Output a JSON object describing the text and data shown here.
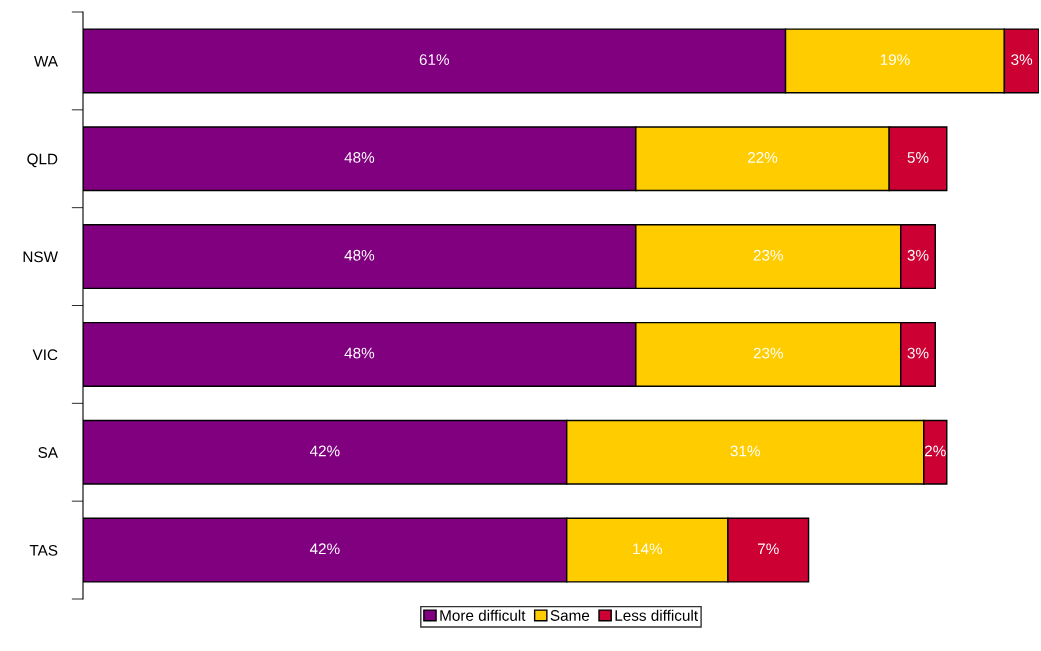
{
  "chart_data": {
    "type": "bar",
    "orientation": "horizontal",
    "stacked": true,
    "legend": "bottom",
    "grid": false,
    "categories": [
      "WA",
      "QLD",
      "NSW",
      "VIC",
      "SA",
      "TAS"
    ],
    "series": [
      {
        "name": "More difficult",
        "color": "#800080",
        "values": [
          61,
          48,
          48,
          48,
          42,
          42
        ],
        "value_labels": [
          "61%",
          "48%",
          "48%",
          "48%",
          "42%",
          "42%"
        ]
      },
      {
        "name": "Same",
        "color": "#ffcc00",
        "values": [
          19,
          22,
          23,
          23,
          31,
          14
        ],
        "value_labels": [
          "19%",
          "22%",
          "23%",
          "23%",
          "31%",
          "14%"
        ]
      },
      {
        "name": "Less difficult",
        "color": "#cc0033",
        "values": [
          3,
          5,
          3,
          3,
          2,
          7
        ],
        "value_labels": [
          "3%",
          "5%",
          "3%",
          "3%",
          "2%",
          "7%"
        ]
      }
    ]
  }
}
